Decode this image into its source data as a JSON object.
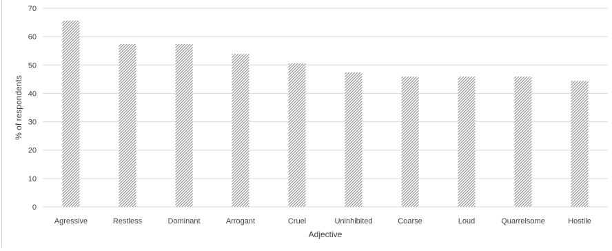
{
  "chart_data": {
    "type": "bar",
    "title": "",
    "xlabel": "Adjective",
    "ylabel": "% of respondents",
    "categories": [
      "Agressive",
      "Restless",
      "Dominant",
      "Arrogant",
      "Cruel",
      "Uninhibited",
      "Coarse",
      "Loud",
      "Quarrelsome",
      "Hostile"
    ],
    "values": [
      65.6,
      57.4,
      57.4,
      53.9,
      50.6,
      47.4,
      45.9,
      45.9,
      45.9,
      44.4
    ],
    "ylim": [
      0,
      70
    ],
    "yticks": [
      0,
      10,
      20,
      30,
      40,
      50,
      60,
      70
    ],
    "grid": true,
    "legend": "none",
    "bar_fill": "diagonal-hatch",
    "colors": {
      "hatch": "#8c8c8c",
      "grid": "#d9d9d9",
      "text": "#404040",
      "frame": "#d0d0d0"
    }
  }
}
